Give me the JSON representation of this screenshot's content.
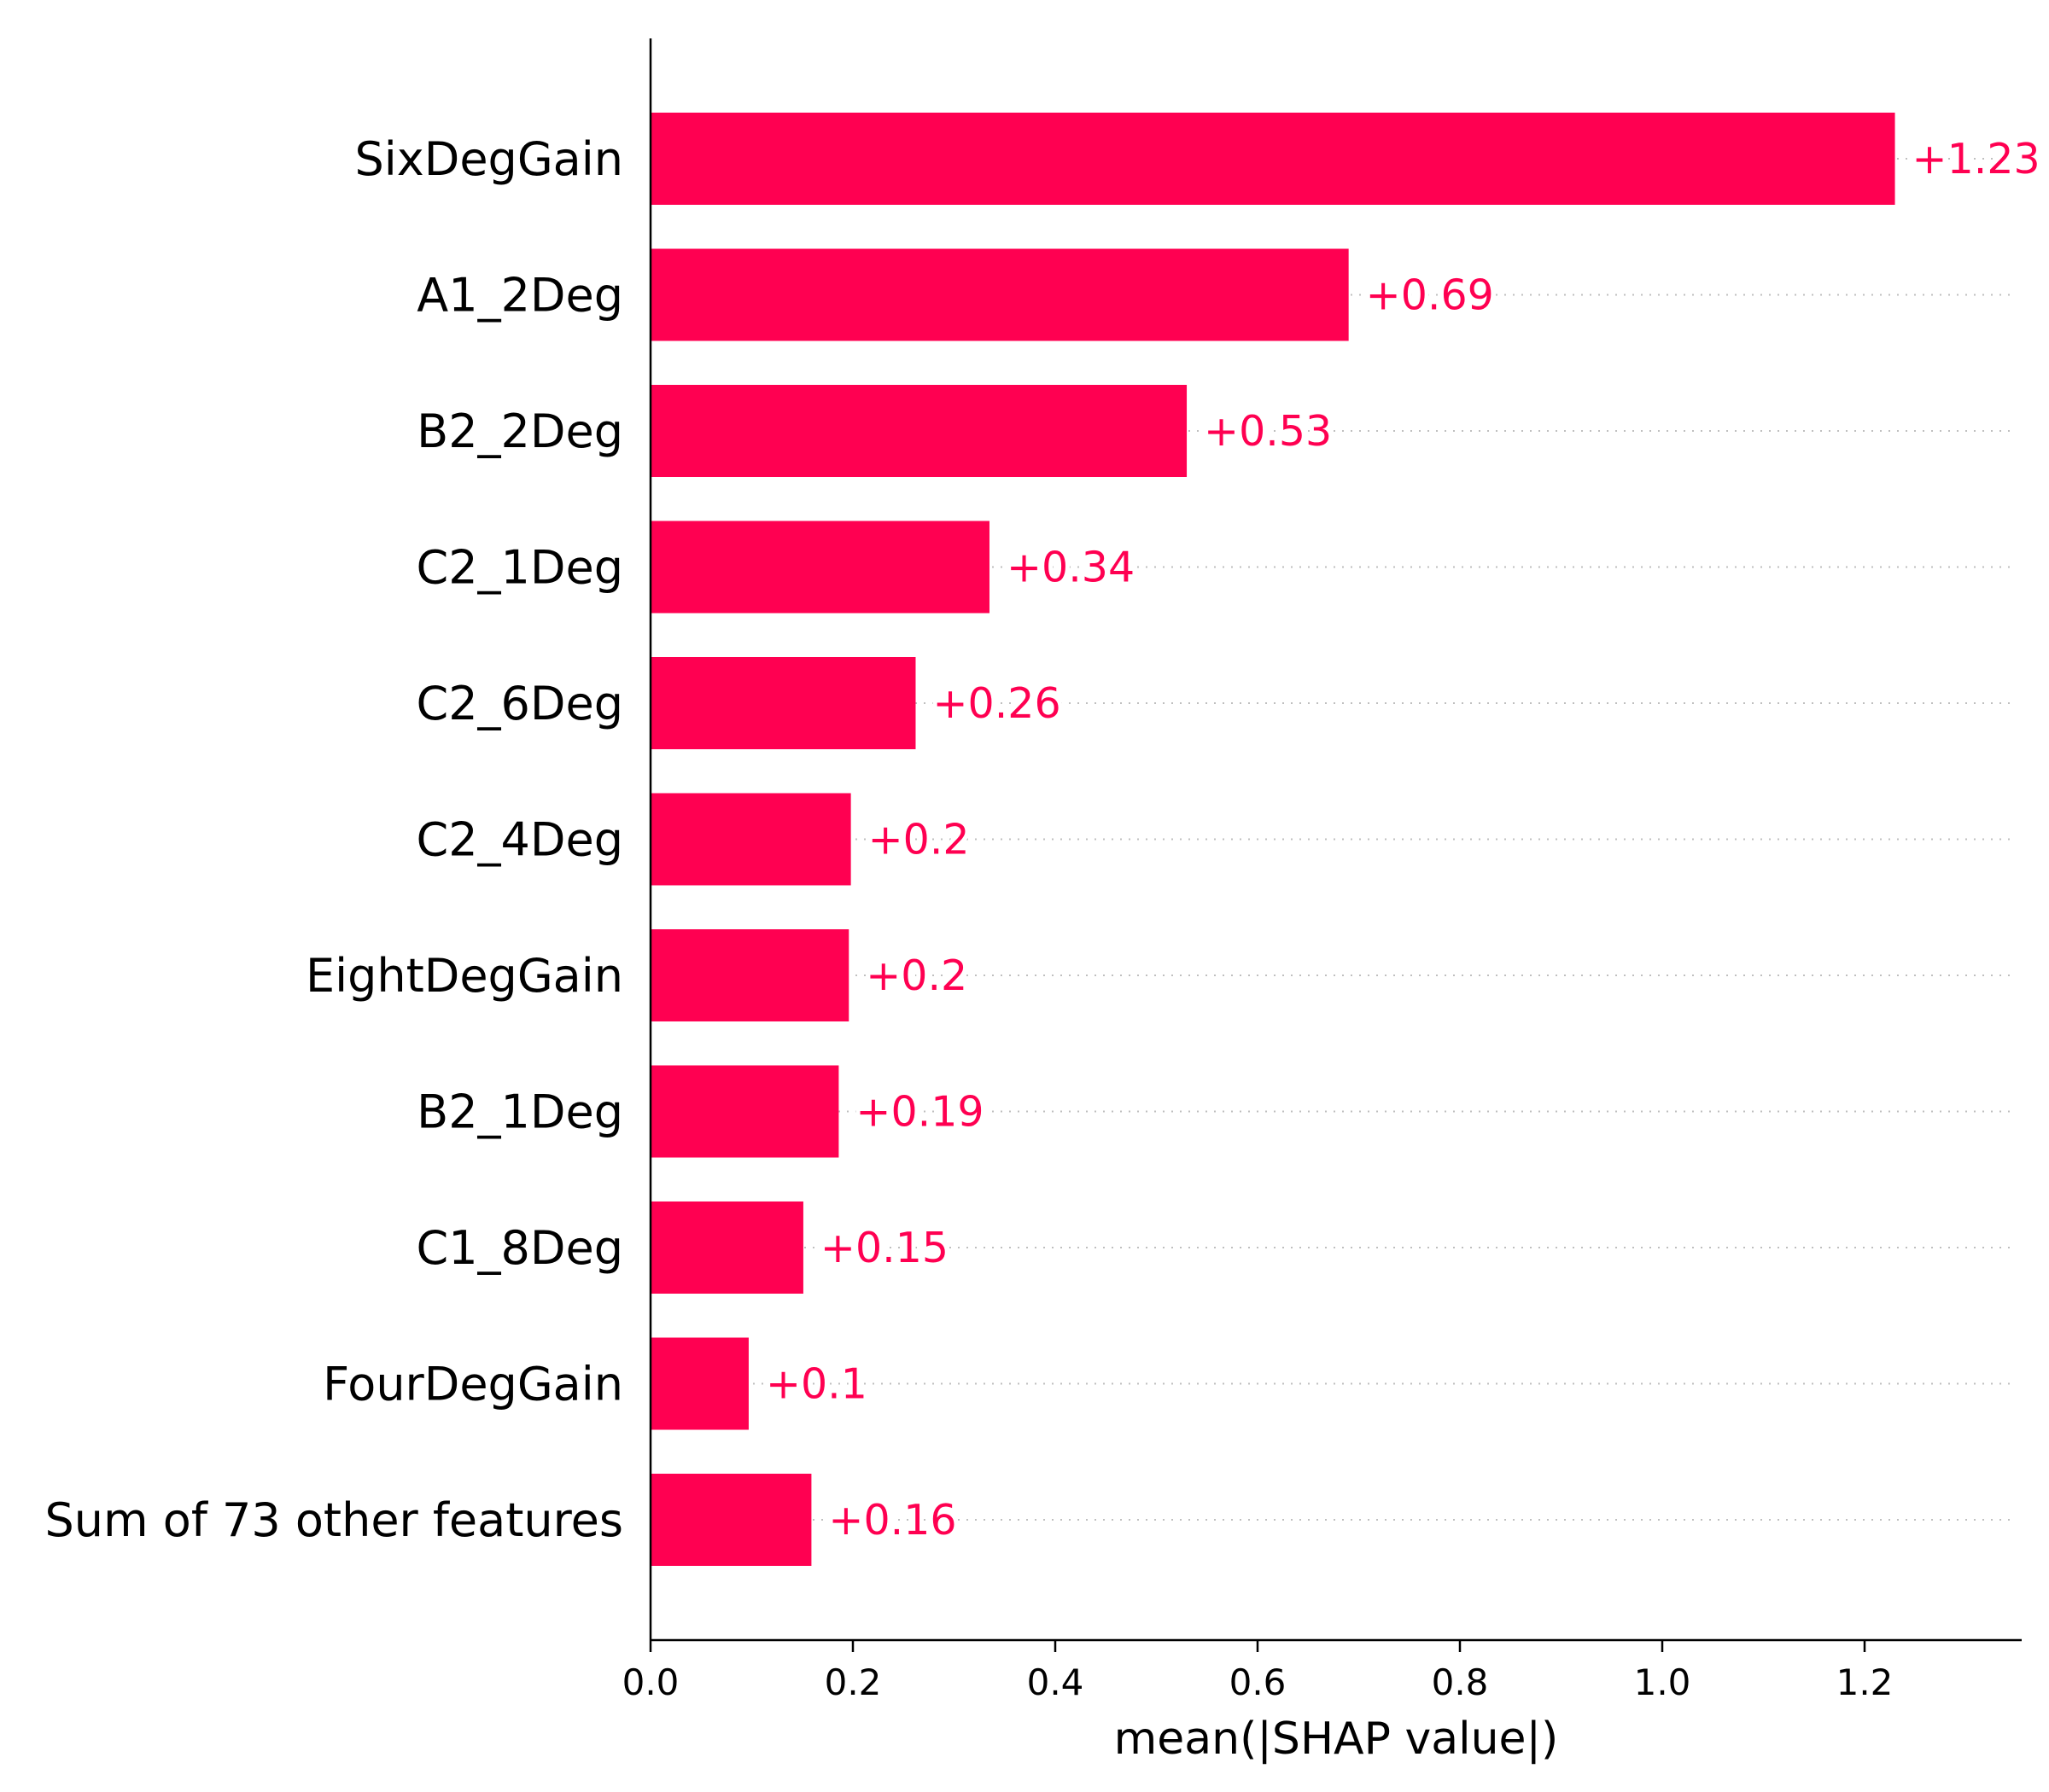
{
  "chart_data": {
    "type": "bar",
    "orientation": "horizontal",
    "title": "",
    "xlabel": "mean(|SHAP value|)",
    "ylabel": "",
    "xlim": [
      0,
      1.35
    ],
    "x_ticks": [
      "0.0",
      "0.2",
      "0.4",
      "0.6",
      "0.8",
      "1.0",
      "1.2"
    ],
    "grid": "dotted guide lines per bar",
    "bar_color": "#ff0051",
    "categories": [
      "SixDegGain",
      "A1_2Deg",
      "B2_2Deg",
      "C2_1Deg",
      "C2_6Deg",
      "C2_4Deg",
      "EightDegGain",
      "B2_1Deg",
      "C1_8Deg",
      "FourDegGain",
      "Sum of 73 other features"
    ],
    "values": [
      1.23,
      0.69,
      0.53,
      0.335,
      0.262,
      0.198,
      0.196,
      0.186,
      0.151,
      0.097,
      0.159
    ],
    "value_labels": [
      "+1.23",
      "+0.69",
      "+0.53",
      "+0.34",
      "+0.26",
      "+0.2",
      "+0.2",
      "+0.19",
      "+0.15",
      "+0.1",
      "+0.16"
    ]
  }
}
